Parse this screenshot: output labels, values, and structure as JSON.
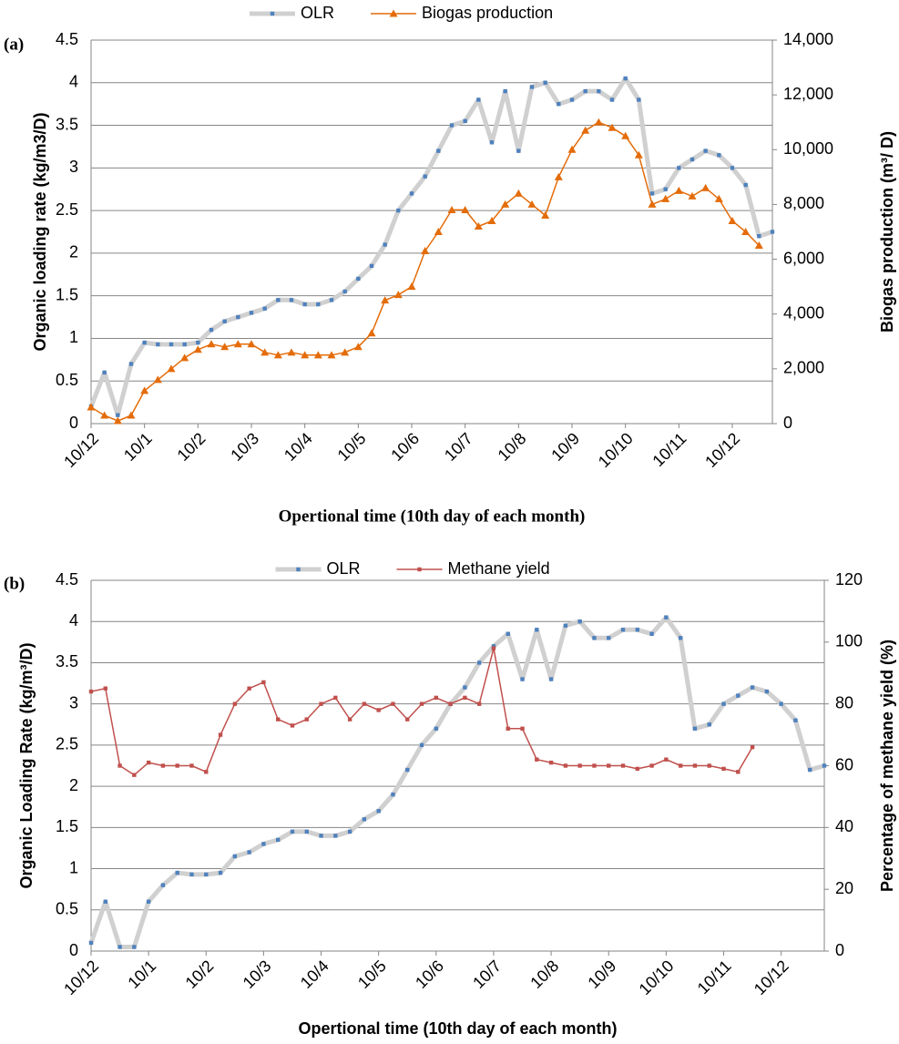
{
  "chart_data": [
    {
      "type": "line",
      "label": "(a)",
      "x_title": "Opertional  time (10th day of each month)",
      "y_title": "Organic  loading  rate (kg/m3/D)",
      "y2_title": "Biogas   production   (m³/ D)",
      "categories": [
        "10/12",
        null,
        null,
        null,
        "10/1",
        null,
        null,
        null,
        "10/2",
        null,
        null,
        null,
        "10/3",
        null,
        null,
        null,
        "10/4",
        null,
        null,
        null,
        "10/5",
        null,
        null,
        null,
        "10/6",
        null,
        null,
        null,
        "10/7",
        null,
        null,
        null,
        "10/8",
        null,
        null,
        null,
        "10/9",
        null,
        null,
        null,
        "10/10",
        null,
        null,
        null,
        "10/11",
        null,
        null,
        null,
        "10/12",
        null,
        null,
        null
      ],
      "series": [
        {
          "name": "OLR",
          "color": "#4f81bd",
          "line_color": "#d0d0d0",
          "marker": "square",
          "axis": "y",
          "values": [
            0.2,
            0.6,
            0.1,
            0.7,
            0.95,
            0.93,
            0.93,
            0.93,
            0.95,
            1.1,
            1.2,
            1.25,
            1.3,
            1.35,
            1.45,
            1.45,
            1.4,
            1.4,
            1.45,
            1.55,
            1.7,
            1.85,
            2.1,
            2.5,
            2.7,
            2.9,
            3.2,
            3.5,
            3.55,
            3.8,
            3.3,
            3.9,
            3.2,
            3.95,
            4.0,
            3.75,
            3.8,
            3.9,
            3.9,
            3.8,
            4.05,
            3.8,
            2.7,
            2.75,
            3.0,
            3.1,
            3.2,
            3.15,
            3.0,
            2.8,
            2.2,
            2.25
          ]
        },
        {
          "name": "Biogas production",
          "color": "#e46c0a",
          "line_color": "#e46c0a",
          "marker": "triangle",
          "axis": "y2",
          "values": [
            600,
            300,
            100,
            300,
            1200,
            1600,
            2000,
            2400,
            2700,
            2900,
            2800,
            2900,
            2900,
            2600,
            2500,
            2600,
            2500,
            2500,
            2500,
            2600,
            2800,
            3300,
            4500,
            4700,
            5000,
            6300,
            7000,
            7800,
            7800,
            7200,
            7400,
            8000,
            8400,
            8000,
            7600,
            9000,
            10000,
            10700,
            11000,
            10800,
            10500,
            9800,
            8000,
            8200,
            8500,
            8300,
            8600,
            8200,
            7400,
            7000,
            6500,
            null
          ]
        }
      ],
      "ylim": [
        0,
        4.5
      ],
      "yticks": [
        0,
        0.5,
        1,
        1.5,
        2,
        2.5,
        3,
        3.5,
        4,
        4.5
      ],
      "y2lim": [
        0,
        14000
      ],
      "y2ticks": [
        0,
        {
          "value": 2000,
          "label": "2,000"
        },
        {
          "value": 4000,
          "label": "4,000"
        },
        {
          "value": 6000,
          "label": "6,000"
        },
        {
          "value": 8000,
          "label": "8,000"
        },
        {
          "value": 10000,
          "label": "10,000"
        },
        {
          "value": 12000,
          "label": "12,000"
        },
        {
          "value": 14000,
          "label": "14,000"
        }
      ],
      "grid": true,
      "legend": "top"
    },
    {
      "type": "line",
      "label": "(b)",
      "x_title": "Opertional time (10th day of each month)",
      "y_title": "Organic Loading Rate (kg/m³/D)",
      "y2_title": "Percentage of methane yield  (%)",
      "categories": [
        "10/12",
        null,
        null,
        null,
        "10/1",
        null,
        null,
        null,
        "10/2",
        null,
        null,
        null,
        "10/3",
        null,
        null,
        null,
        "10/4",
        null,
        null,
        null,
        "10/5",
        null,
        null,
        null,
        "10/6",
        null,
        null,
        null,
        "10/7",
        null,
        null,
        null,
        "10/8",
        null,
        null,
        null,
        "10/9",
        null,
        null,
        null,
        "10/10",
        null,
        null,
        null,
        "10/11",
        null,
        null,
        null,
        "10/12",
        null,
        null,
        null
      ],
      "series": [
        {
          "name": "OLR",
          "color": "#4f81bd",
          "line_color": "#d0d0d0",
          "marker": "square",
          "axis": "y",
          "values": [
            0.1,
            0.6,
            0.05,
            0.05,
            0.6,
            0.8,
            0.95,
            0.93,
            0.93,
            0.95,
            1.15,
            1.2,
            1.3,
            1.35,
            1.45,
            1.45,
            1.4,
            1.4,
            1.45,
            1.6,
            1.7,
            1.9,
            2.2,
            2.5,
            2.7,
            3.0,
            3.2,
            3.5,
            3.7,
            3.85,
            3.3,
            3.9,
            3.3,
            3.95,
            4.0,
            3.8,
            3.8,
            3.9,
            3.9,
            3.85,
            4.05,
            3.8,
            2.7,
            2.75,
            3.0,
            3.1,
            3.2,
            3.15,
            3.0,
            2.8,
            2.2,
            2.25
          ]
        },
        {
          "name": "Methane yield",
          "color": "#c0504d",
          "line_color": "#c0504d",
          "marker": "square",
          "axis": "y2",
          "values": [
            84,
            85,
            60,
            57,
            61,
            60,
            60,
            60,
            58,
            70,
            80,
            85,
            87,
            75,
            73,
            75,
            80,
            82,
            75,
            80,
            78,
            80,
            75,
            80,
            82,
            80,
            82,
            80,
            98,
            72,
            72,
            62,
            61,
            60,
            60,
            60,
            60,
            60,
            59,
            60,
            62,
            60,
            60,
            60,
            59,
            58,
            66,
            null,
            null,
            null,
            null,
            null
          ]
        }
      ],
      "ylim": [
        0,
        4.5
      ],
      "yticks": [
        0,
        0.5,
        1,
        1.5,
        2,
        2.5,
        3,
        3.5,
        4,
        4.5
      ],
      "y2lim": [
        0,
        120
      ],
      "y2ticks": [
        0,
        20,
        40,
        60,
        80,
        100,
        120
      ],
      "grid": true,
      "legend": "top"
    }
  ]
}
